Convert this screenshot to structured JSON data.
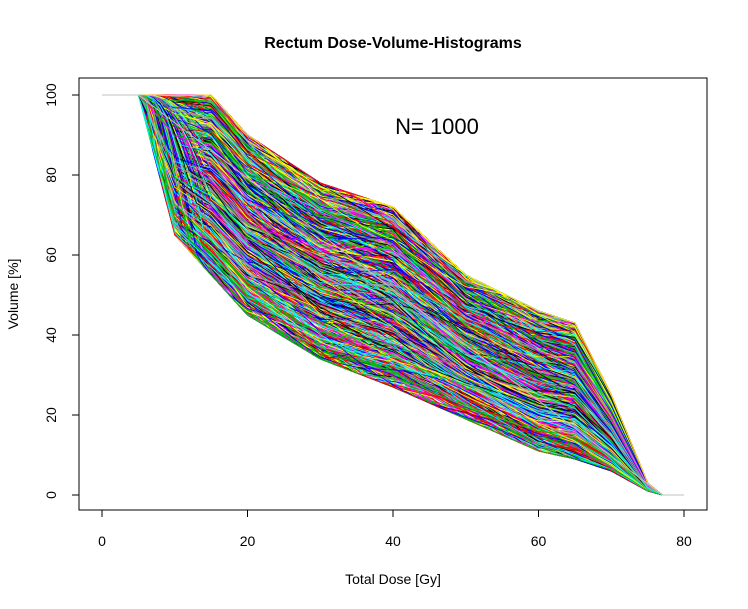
{
  "chart_data": {
    "type": "line",
    "title": "Rectum Dose-Volume-Histograms",
    "xlabel": "Total Dose [Gy]",
    "ylabel": "Volume [%]",
    "xlim": [
      0,
      80
    ],
    "ylim": [
      0,
      100
    ],
    "x_ticks": [
      0,
      20,
      40,
      60,
      80
    ],
    "y_ticks": [
      0,
      20,
      40,
      60,
      80,
      100
    ],
    "annotation": "N= 1000",
    "grid": false,
    "legend": "none",
    "series_count": 1000,
    "reference_line": {
      "color": "#c0c0c0",
      "x": [
        0,
        5,
        77,
        80
      ],
      "y": [
        100,
        100,
        0,
        0
      ]
    },
    "curve_envelope": {
      "dose": [
        5,
        10,
        15,
        20,
        30,
        40,
        50,
        60,
        65,
        70,
        75,
        77
      ],
      "volume_lower": [
        100,
        65,
        55,
        45,
        34,
        27,
        19,
        11,
        9,
        6,
        1,
        0
      ],
      "volume_upper": [
        100,
        100,
        100,
        90,
        78,
        72,
        55,
        46,
        43,
        25,
        3,
        0
      ]
    },
    "colors": [
      "#ff0000",
      "#00c000",
      "#0000ff",
      "#00ffff",
      "#ff00ff",
      "#ffff00",
      "#000000",
      "#a0a0a0"
    ]
  }
}
